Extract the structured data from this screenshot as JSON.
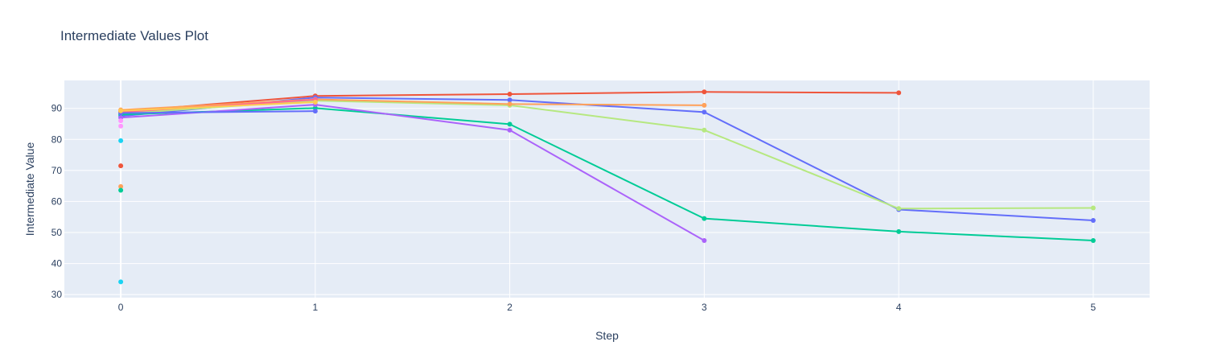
{
  "chart_data": {
    "type": "line",
    "title": "Intermediate Values Plot",
    "xlabel": "Step",
    "ylabel": "Intermediate Value",
    "xlim": [
      -0.29,
      5.29
    ],
    "ylim": [
      29,
      99
    ],
    "x_ticks": [
      "0",
      "1",
      "2",
      "3",
      "4",
      "5"
    ],
    "y_ticks": [
      "30",
      "40",
      "50",
      "60",
      "70",
      "80",
      "90"
    ],
    "grid": true,
    "legend": "none",
    "background": "#e5ecf6",
    "series": [
      {
        "color": "#ef553b",
        "x": [
          0,
          1,
          2,
          3,
          4
        ],
        "y": [
          89.0,
          94.0,
          94.6,
          95.3,
          95.0
        ]
      },
      {
        "color": "#636efa",
        "x": [
          0,
          1,
          2,
          3,
          4,
          5
        ],
        "y": [
          87.5,
          93.5,
          92.7,
          88.8,
          57.4,
          53.9
        ]
      },
      {
        "color": "#b6e880",
        "x": [
          0,
          1,
          2,
          3,
          4,
          5
        ],
        "y": [
          88.3,
          92.5,
          91.0,
          83.0,
          57.7,
          57.9
        ]
      },
      {
        "color": "#00cc96",
        "x": [
          0,
          1,
          2,
          3,
          4,
          5
        ],
        "y": [
          88.0,
          90.1,
          84.9,
          54.5,
          50.3,
          47.4
        ]
      },
      {
        "color": "#ab63fa",
        "x": [
          0,
          1,
          2,
          3
        ],
        "y": [
          87.0,
          91.2,
          83.0,
          47.4
        ]
      },
      {
        "color": "#ffa15a",
        "x": [
          0,
          1,
          2,
          3
        ],
        "y": [
          89.5,
          92.9,
          91.4,
          91.0
        ]
      },
      {
        "color": "#ff6692",
        "x": [
          0,
          1
        ],
        "y": [
          88.8,
          92.8
        ]
      },
      {
        "color": "#636efa",
        "x": [
          0,
          1
        ],
        "y": [
          88.5,
          89.1
        ]
      },
      {
        "color": "#fecb52",
        "x": [
          0,
          1
        ],
        "y": [
          89.2,
          92.0
        ]
      },
      {
        "color": "#ff97ff",
        "x": [
          0
        ],
        "y": [
          86.0
        ]
      },
      {
        "color": "#ff97ff",
        "x": [
          0
        ],
        "y": [
          84.3
        ]
      },
      {
        "color": "#19d3f3",
        "x": [
          0
        ],
        "y": [
          79.6
        ]
      },
      {
        "color": "#ef553b",
        "x": [
          0
        ],
        "y": [
          71.5
        ]
      },
      {
        "color": "#ffa15a",
        "x": [
          0
        ],
        "y": [
          64.8
        ]
      },
      {
        "color": "#00cc96",
        "x": [
          0
        ],
        "y": [
          63.6
        ]
      },
      {
        "color": "#19d3f3",
        "x": [
          0
        ],
        "y": [
          34.1
        ]
      }
    ]
  }
}
